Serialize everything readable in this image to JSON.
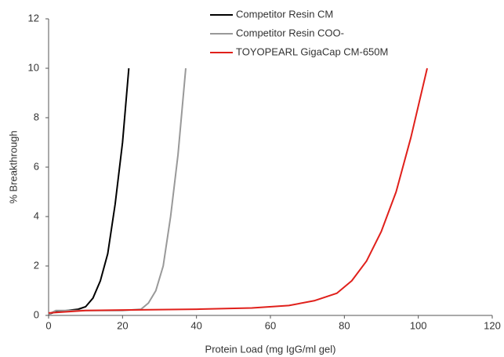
{
  "chart_data": {
    "type": "line",
    "x_label": "Protein Load (mg IgG/ml gel)",
    "y_label": "% Breakthrough",
    "xlim": [
      0,
      120
    ],
    "xticks": [
      0,
      20,
      40,
      60,
      80,
      100,
      120
    ],
    "ylim": [
      0,
      12
    ],
    "yticks": [
      0,
      2,
      4,
      6,
      8,
      10,
      12
    ],
    "series": [
      {
        "name": "Competitor Resin CM",
        "color": "#000000",
        "x": [
          0,
          2,
          5,
          8,
          10,
          12,
          14,
          16,
          18,
          20,
          21.7
        ],
        "values": [
          0.05,
          0.15,
          0.2,
          0.25,
          0.35,
          0.7,
          1.4,
          2.5,
          4.5,
          7,
          10
        ]
      },
      {
        "name": "Competitor Resin COO-",
        "color": "#999999",
        "x": [
          0,
          2,
          5,
          10,
          20,
          25,
          27,
          29,
          31,
          33,
          35,
          37.1
        ],
        "values": [
          0.05,
          0.2,
          0.2,
          0.2,
          0.2,
          0.25,
          0.5,
          1,
          2,
          4,
          6.5,
          10
        ]
      },
      {
        "name": "TOYOPEARL GigaCap CM-650M",
        "color": "#e0201b",
        "x": [
          0,
          10,
          20,
          40,
          55,
          65,
          72,
          78,
          82,
          86,
          90,
          94,
          98,
          102.4
        ],
        "values": [
          0.1,
          0.2,
          0.22,
          0.25,
          0.3,
          0.4,
          0.6,
          0.9,
          1.4,
          2.2,
          3.4,
          5,
          7.2,
          10
        ]
      }
    ]
  }
}
